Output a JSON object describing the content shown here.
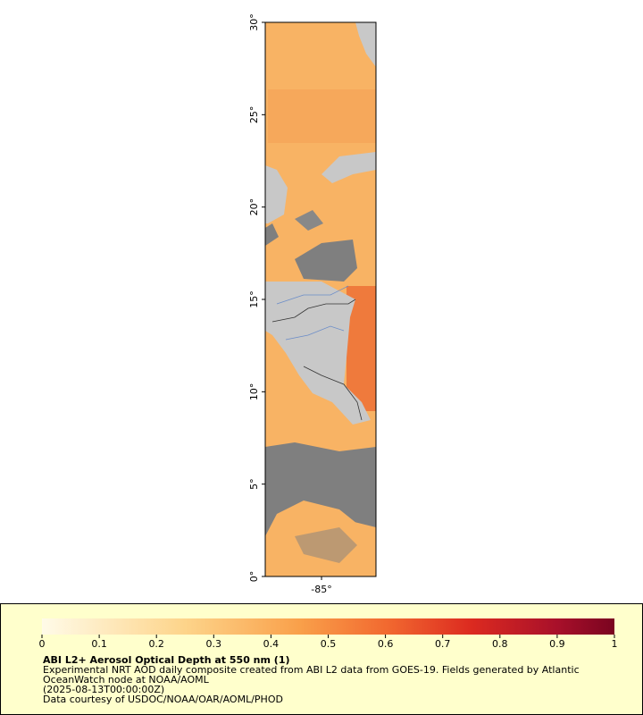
{
  "map": {
    "ylim": [
      0,
      30
    ],
    "yticks": [
      {
        "value": 0,
        "label": "0°"
      },
      {
        "value": 5,
        "label": "5°"
      },
      {
        "value": 10,
        "label": "10°"
      },
      {
        "value": 15,
        "label": "15°"
      },
      {
        "value": 20,
        "label": "20°"
      },
      {
        "value": 25,
        "label": "25°"
      },
      {
        "value": 30,
        "label": "30°"
      }
    ],
    "xlim": [
      -88.05,
      -82.05
    ],
    "xticks": [
      {
        "value": -85,
        "label": "-85°"
      }
    ]
  },
  "colorbar": {
    "lim": [
      0,
      1
    ],
    "ticks": [
      0,
      0.1,
      0.2,
      0.3,
      0.4,
      0.5,
      0.6,
      0.7,
      0.8,
      0.9,
      1
    ]
  },
  "legend": {
    "title": "ABI L2+ Aerosol Optical Depth at 550 nm (1)",
    "lines": [
      "Experimental NRT AOD daily composite created from ABI L2 data from GOES-19. Fields generated by Atlantic",
      "OceanWatch node at NOAA/AOML",
      "(2025-08-13T00:00:00Z)",
      "Data courtesy of USDOC/NOAA/OAR/AOML/PHOD"
    ]
  }
}
